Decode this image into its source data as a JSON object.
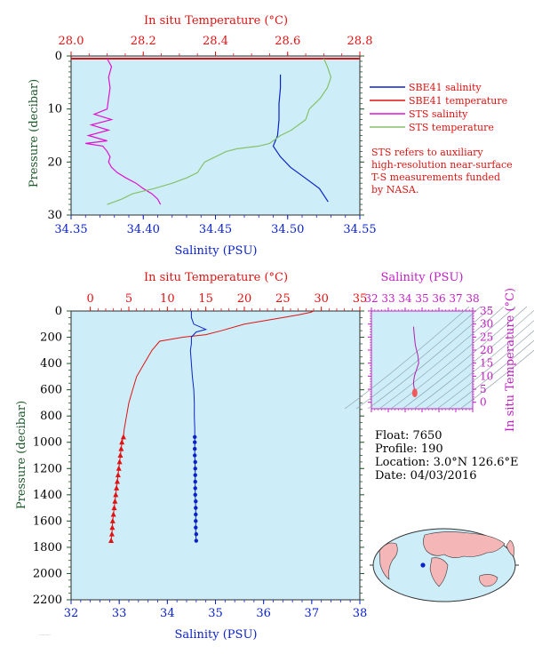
{
  "colors": {
    "plot_bg": "#cdeef9",
    "salinity": "#0a22c8",
    "temperature": "#e01212",
    "sts_salinity": "#e010d0",
    "sts_temperature": "#86c06a",
    "pressure_axis": "#1f5a2c",
    "ts_accent": "#c21fc3"
  },
  "top_panel": {
    "temp_axis_title": "In situ Temperature (°C)",
    "sal_axis_title": "Salinity (PSU)",
    "pressure_title": "Pressure (decibar)",
    "temp_ticks": [
      "28.0",
      "28.2",
      "28.4",
      "28.6",
      "28.8"
    ],
    "sal_ticks": [
      "34.35",
      "34.40",
      "34.45",
      "34.50",
      "34.55"
    ],
    "pressure_ticks": [
      "0",
      "10",
      "20",
      "30"
    ],
    "legend": [
      {
        "label": "SBE41 salinity",
        "color_key": "salinity"
      },
      {
        "label": "SBE41 temperature",
        "color_key": "temperature"
      },
      {
        "label": "STS salinity",
        "color_key": "sts_salinity"
      },
      {
        "label": "STS temperature",
        "color_key": "sts_temperature"
      }
    ],
    "note_lines": [
      "STS refers to auxiliary",
      "high-resolution near-surface",
      "T-S measurements funded",
      "by NASA."
    ]
  },
  "bottom_panel": {
    "temp_axis_title": "In situ Temperature (°C)",
    "sal_axis_title": "Salinity (PSU)",
    "pressure_title": "Pressure (decibar)",
    "temp_ticks": [
      "0",
      "5",
      "10",
      "15",
      "20",
      "25",
      "30",
      "35"
    ],
    "sal_ticks": [
      "32",
      "33",
      "34",
      "35",
      "36",
      "37",
      "38"
    ],
    "pressure_ticks": [
      "0",
      "200",
      "400",
      "600",
      "800",
      "1000",
      "1200",
      "1400",
      "1600",
      "1800",
      "2000",
      "2200"
    ]
  },
  "ts_panel": {
    "sal_title": "Salinity (PSU)",
    "temp_title": "In situ Temperature (°C)",
    "sal_ticks": [
      "32",
      "33",
      "34",
      "35",
      "36",
      "37",
      "38"
    ],
    "temp_ticks": [
      "35",
      "30",
      "25",
      "20",
      "15",
      "10",
      "5",
      "0"
    ]
  },
  "float_info": {
    "float": "Float:  7650",
    "profile": "Profile:  190",
    "location": "Location:  3.0°N  126.6°E",
    "date": "Date:  04/03/2016"
  },
  "chart_data": [
    {
      "type": "line",
      "title": "",
      "x_top_label": "In situ Temperature (°C)",
      "x_top_range": [
        28.0,
        28.8
      ],
      "xlabel": "Salinity (PSU)",
      "xlim": [
        34.35,
        34.55
      ],
      "ylabel": "Pressure (decibar)",
      "ylim": [
        30,
        0
      ],
      "legend_position": "right",
      "series": [
        {
          "name": "SBE41 salinity",
          "axis": "salinity",
          "y": [
            3.5,
            6,
            9,
            12,
            15,
            17,
            19,
            21,
            23,
            25,
            27.5
          ],
          "x": [
            34.495,
            34.495,
            34.494,
            34.494,
            34.493,
            34.49,
            34.495,
            34.502,
            34.512,
            34.522,
            34.528
          ]
        },
        {
          "name": "SBE41 temperature",
          "axis": "temperature",
          "y": [
            0.5,
            0.5
          ],
          "x": [
            28.0,
            28.8
          ]
        },
        {
          "name": "STS salinity",
          "axis": "salinity",
          "y": [
            0.5,
            2,
            4,
            6,
            8,
            10,
            11,
            12,
            13,
            14,
            15,
            16,
            16.5,
            17,
            18,
            19,
            20,
            21,
            22,
            23,
            24,
            25,
            26,
            27,
            28
          ],
          "x": [
            34.375,
            34.378,
            34.376,
            34.377,
            34.376,
            34.375,
            34.366,
            34.378,
            34.364,
            34.376,
            34.362,
            34.375,
            34.36,
            34.372,
            34.375,
            34.377,
            34.376,
            34.378,
            34.382,
            34.388,
            34.395,
            34.4,
            34.406,
            34.41,
            34.412
          ]
        },
        {
          "name": "STS temperature",
          "axis": "temperature",
          "y": [
            0.5,
            2,
            4,
            6,
            8,
            10,
            12,
            13,
            14,
            15,
            16,
            16.5,
            17,
            17.5,
            18,
            19,
            20,
            21,
            22,
            23,
            24,
            25,
            26,
            27,
            28
          ],
          "x": [
            28.7,
            28.71,
            28.72,
            28.71,
            28.69,
            28.66,
            28.65,
            28.63,
            28.61,
            28.58,
            28.56,
            28.55,
            28.52,
            28.46,
            28.43,
            28.4,
            28.37,
            28.36,
            28.35,
            28.32,
            28.28,
            28.23,
            28.17,
            28.14,
            28.1
          ]
        }
      ]
    },
    {
      "type": "line",
      "title": "",
      "x_top_label": "In situ Temperature (°C)",
      "x_top_range": [
        -2.5,
        35
      ],
      "xlabel": "Salinity (PSU)",
      "xlim": [
        32,
        38
      ],
      "ylabel": "Pressure (decibar)",
      "ylim": [
        2200,
        0
      ],
      "series": [
        {
          "name": "Temperature",
          "axis": "temperature",
          "y": [
            0,
            10,
            30,
            60,
            100,
            150,
            180,
            200,
            230,
            300,
            400,
            500,
            600,
            700,
            800,
            900,
            960,
            1000,
            1100,
            1200,
            1300,
            1400,
            1500,
            1600,
            1700,
            1750
          ],
          "x": [
            29,
            28.6,
            27,
            24,
            20,
            17,
            15,
            12,
            9,
            8,
            7,
            6,
            5.5,
            5,
            4.7,
            4.4,
            4.3,
            4.1,
            3.9,
            3.7,
            3.5,
            3.3,
            3.1,
            2.9,
            2.8,
            2.7
          ]
        },
        {
          "name": "Salinity",
          "axis": "salinity",
          "y": [
            0,
            50,
            100,
            140,
            160,
            200,
            250,
            300,
            400,
            500,
            600,
            700,
            800,
            900,
            960,
            1000,
            1100,
            1200,
            1300,
            1400,
            1500,
            1600,
            1700,
            1750
          ],
          "x": [
            34.5,
            34.5,
            34.55,
            34.8,
            34.6,
            34.5,
            34.5,
            34.48,
            34.5,
            34.52,
            34.55,
            34.56,
            34.56,
            34.57,
            34.57,
            34.57,
            34.57,
            34.58,
            34.58,
            34.58,
            34.59,
            34.59,
            34.59,
            34.6
          ]
        }
      ],
      "markers": {
        "temperature_triangles": {
          "y": [
            960,
            1000,
            1050,
            1100,
            1150,
            1200,
            1250,
            1300,
            1350,
            1400,
            1450,
            1500,
            1550,
            1600,
            1650,
            1700,
            1750
          ],
          "x": [
            4.3,
            4.1,
            4.0,
            3.9,
            3.8,
            3.7,
            3.6,
            3.5,
            3.4,
            3.3,
            3.2,
            3.1,
            3.0,
            2.9,
            2.85,
            2.8,
            2.7
          ]
        },
        "salinity_dots": {
          "y": [
            960,
            1000,
            1050,
            1100,
            1150,
            1200,
            1250,
            1300,
            1350,
            1400,
            1450,
            1500,
            1550,
            1600,
            1650,
            1700,
            1750
          ],
          "x": [
            34.57,
            34.57,
            34.57,
            34.57,
            34.58,
            34.58,
            34.58,
            34.58,
            34.58,
            34.58,
            34.59,
            34.59,
            34.59,
            34.59,
            34.59,
            34.6,
            34.6
          ]
        }
      }
    },
    {
      "type": "scatter",
      "title": "",
      "xlabel": "Salinity (PSU)",
      "xlim": [
        32,
        38
      ],
      "ylabel": "In situ Temperature (°C)",
      "ylim": [
        -2.5,
        35
      ],
      "series": [
        {
          "name": "T-S curve",
          "x": [
            34.5,
            34.52,
            34.6,
            34.75,
            34.8,
            34.65,
            34.55,
            34.5,
            34.5,
            34.52,
            34.55,
            34.56,
            34.57
          ],
          "y": [
            29,
            27,
            22,
            18,
            15,
            12,
            10,
            8,
            7,
            6,
            5,
            4.5,
            4
          ]
        }
      ]
    }
  ]
}
